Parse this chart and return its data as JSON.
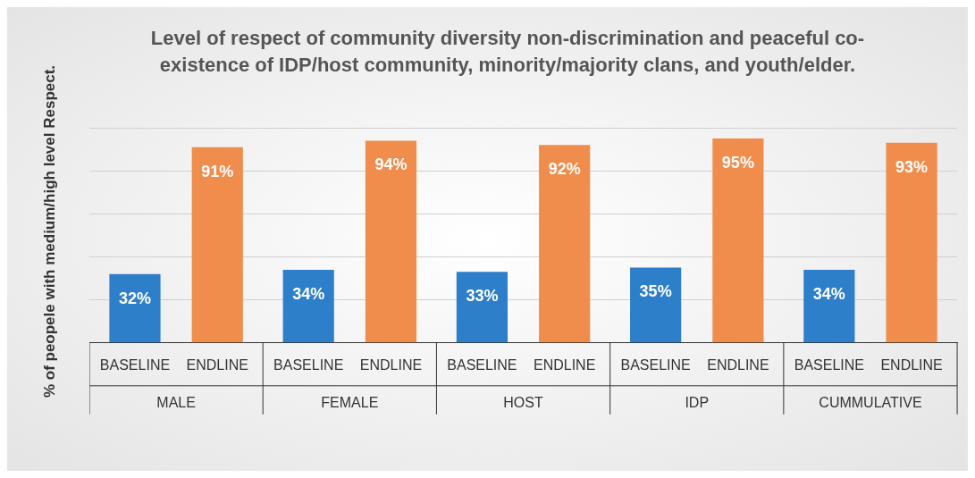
{
  "chart_data": {
    "type": "bar",
    "title": "Level of respect of community diversity non-discrimination and peaceful co-existence of IDP/host community, minority/majority clans, and youth/elder.",
    "ylabel": "% of peopele with medium/high level Respect.",
    "categories": [
      "MALE",
      "FEMALE",
      "HOST",
      "IDP",
      "CUMMULATIVE"
    ],
    "series": [
      {
        "name": "BASELINE",
        "color": "#2e7fc9",
        "values": [
          32,
          34,
          33,
          35,
          34
        ],
        "value_labels": [
          "32%",
          "34%",
          "33%",
          "35%",
          "34%"
        ]
      },
      {
        "name": "ENDLINE",
        "color": "#f08d4d",
        "values": [
          91,
          94,
          92,
          95,
          93
        ],
        "value_labels": [
          "91%",
          "94%",
          "92%",
          "95%",
          "93%"
        ]
      }
    ],
    "grid": "y",
    "tick_labels": "x"
  }
}
